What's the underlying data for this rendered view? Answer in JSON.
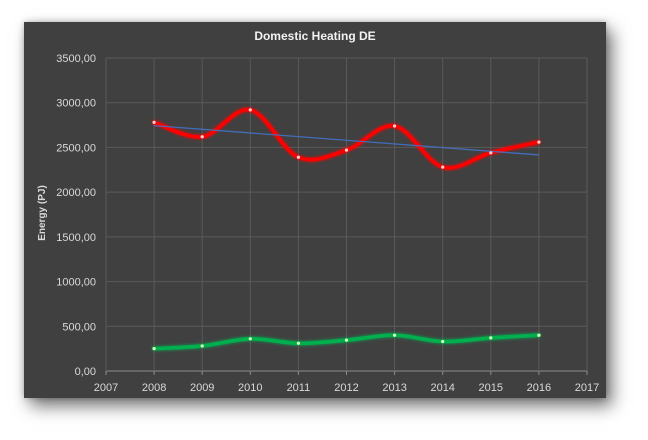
{
  "chart_data": {
    "type": "line",
    "title": "Domestic Heating DE",
    "xlabel": "",
    "ylabel": "Energy (PJ)",
    "xlim": [
      2007,
      2017
    ],
    "ylim": [
      0,
      3500
    ],
    "x_ticks": [
      "2007",
      "2008",
      "2009",
      "2010",
      "2011",
      "2012",
      "2013",
      "2014",
      "2015",
      "2016",
      "2017"
    ],
    "y_ticks": [
      "0,00",
      "500,00",
      "1000,00",
      "1500,00",
      "2000,00",
      "2500,00",
      "3000,00",
      "3500,00"
    ],
    "y_tick_values": [
      0,
      500,
      1000,
      1500,
      2000,
      2500,
      3000,
      3500
    ],
    "grid": true,
    "legend": "none",
    "x": [
      2008,
      2009,
      2010,
      2011,
      2012,
      2013,
      2014,
      2015,
      2016
    ],
    "series": [
      {
        "color": "#ff0000",
        "style": "smooth",
        "values": [
          2780,
          2620,
          2920,
          2390,
          2470,
          2740,
          2280,
          2440,
          2560
        ]
      },
      {
        "color": "#00b050",
        "style": "smooth",
        "values": [
          250,
          280,
          360,
          310,
          345,
          400,
          330,
          370,
          400
        ]
      },
      {
        "color": "#4472c4",
        "style": "trendline-linear",
        "values": [
          2744,
          2703,
          2662,
          2621,
          2580,
          2539,
          2498,
          2457,
          2416
        ]
      }
    ]
  }
}
